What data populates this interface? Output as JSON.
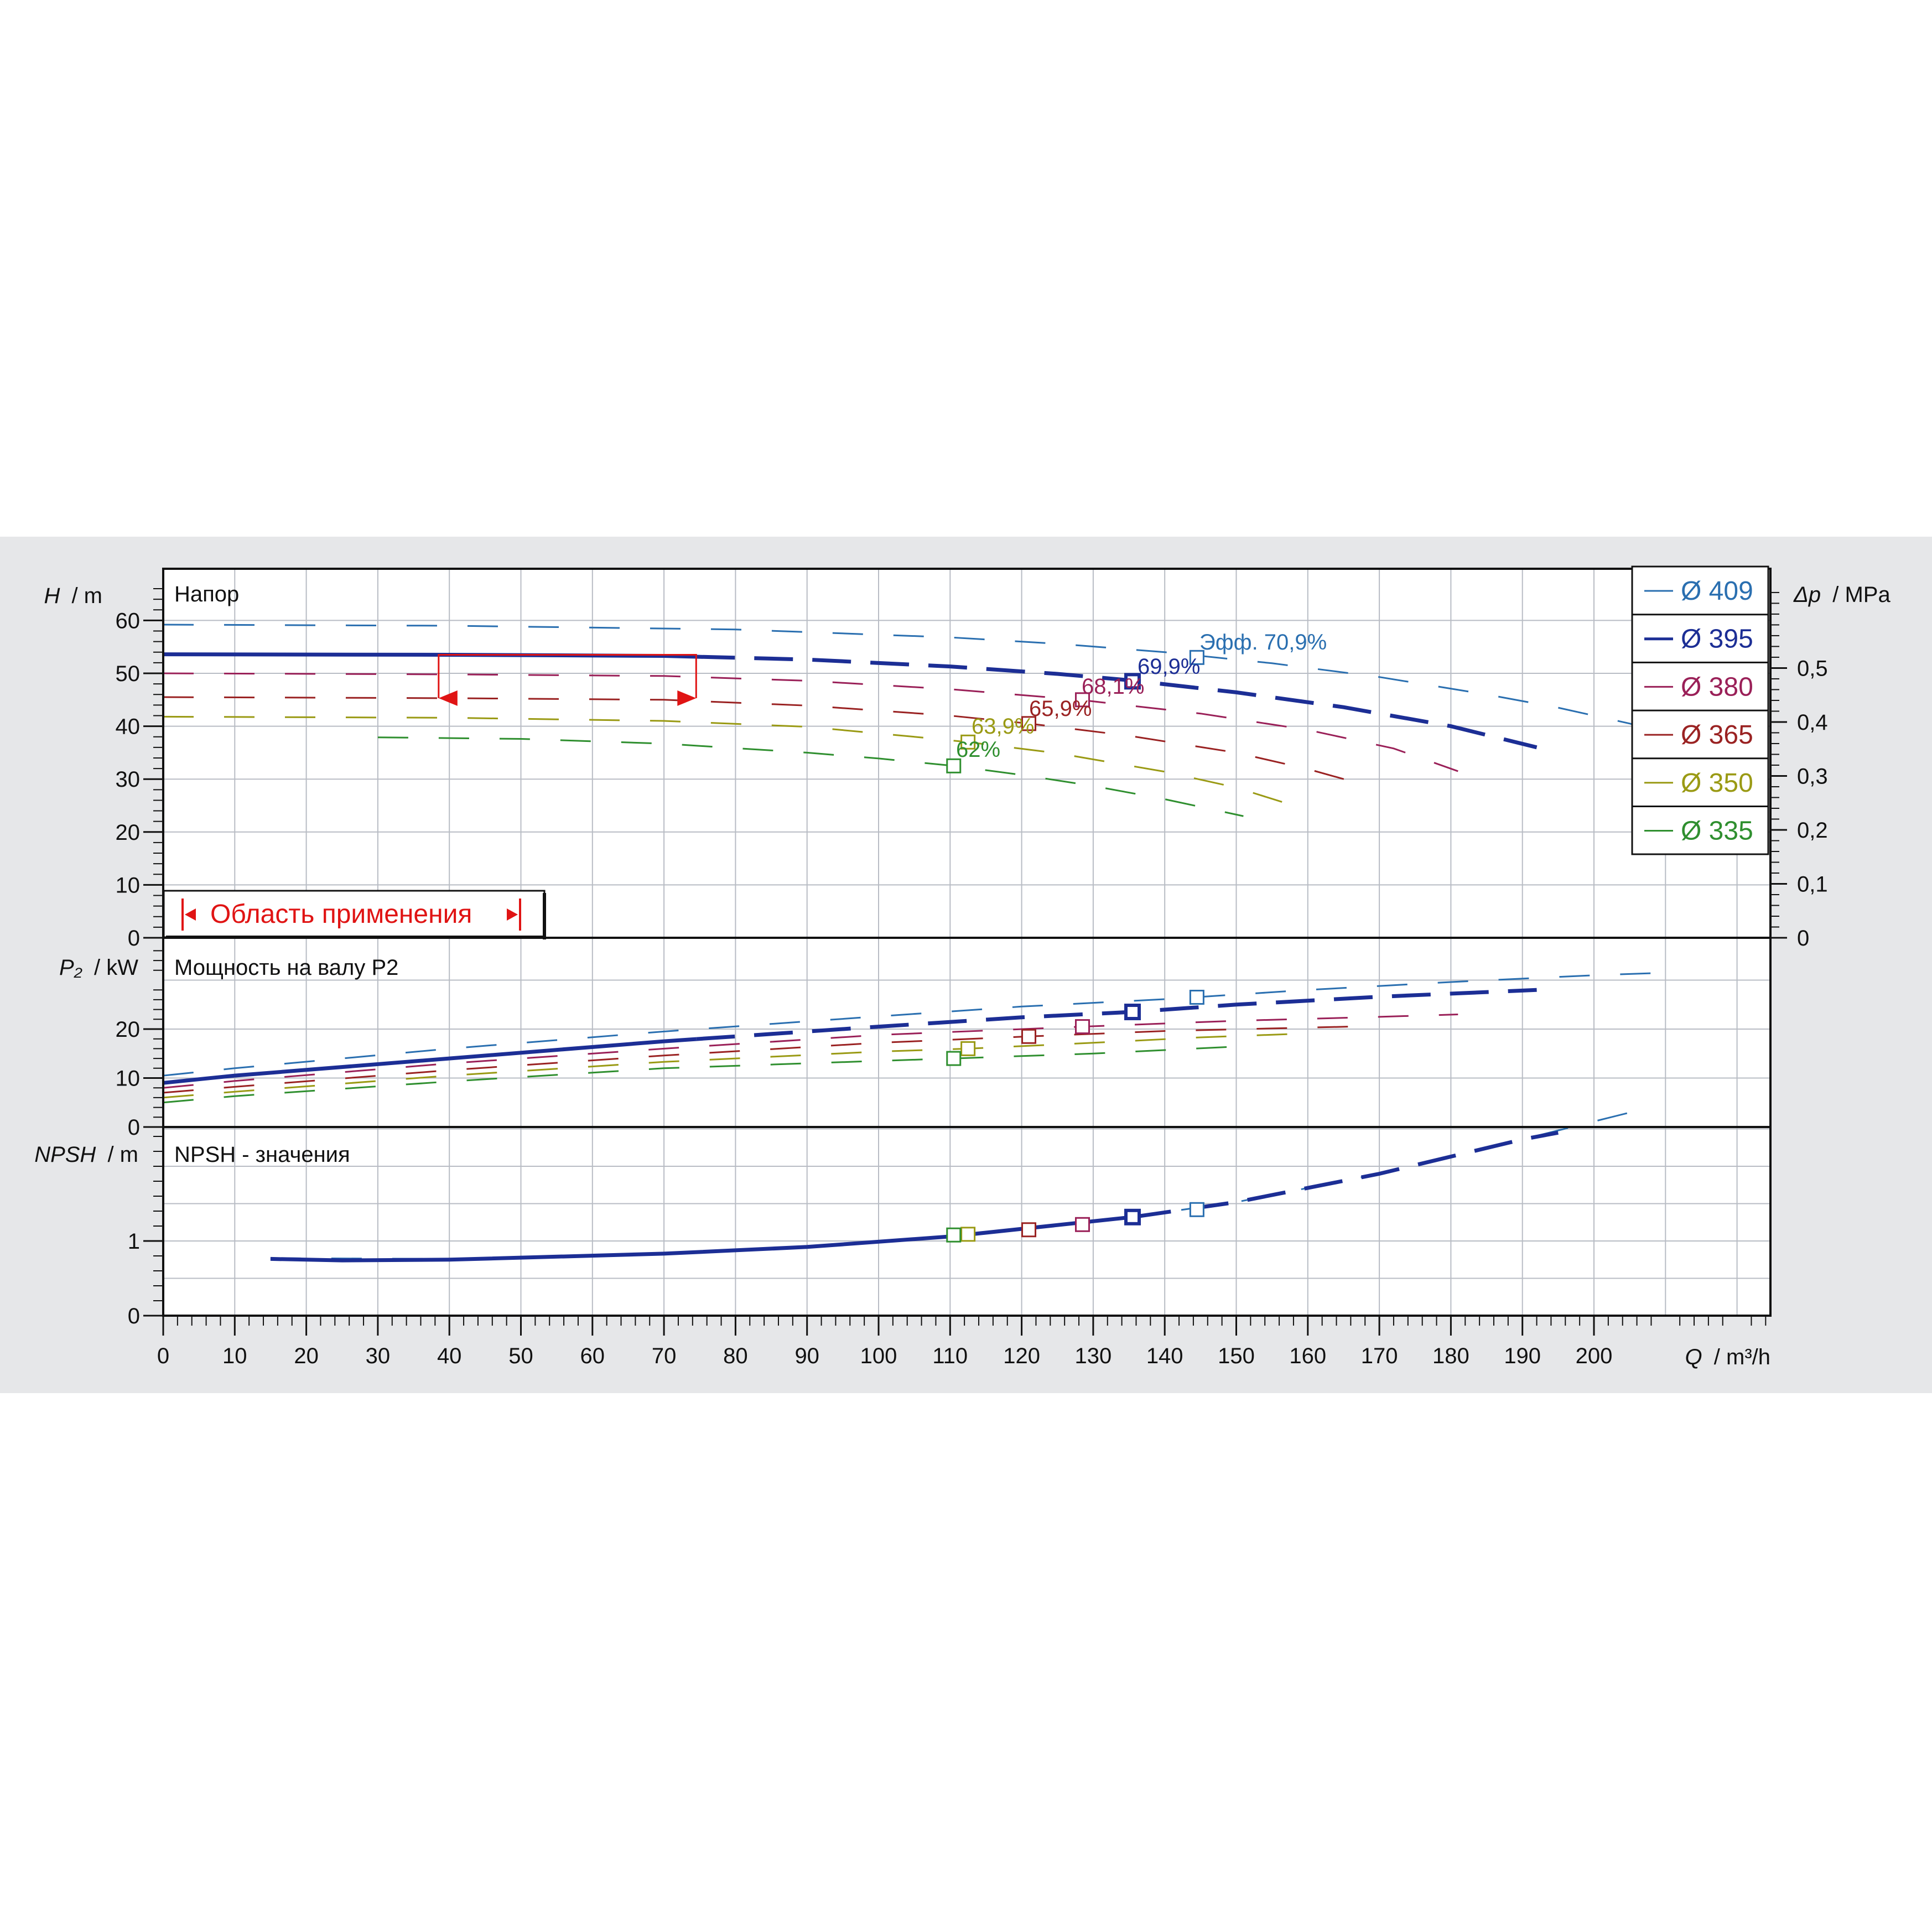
{
  "colors": {
    "d409": "#2a6fb0",
    "d395": "#1c2e95",
    "d380": "#9a2058",
    "d365": "#9a2222",
    "d350": "#9a9a14",
    "d335": "#2f8f2f",
    "range": "#e01414",
    "grid": "#b8bcc4",
    "axis": "#111111",
    "band": "#e6e7e9"
  },
  "axes": {
    "head_title": "Напор",
    "head_ylabel_sym": "H",
    "head_ylabel_unit": "/ m",
    "head_ticks": [
      "0",
      "10",
      "20",
      "30",
      "40",
      "50",
      "60"
    ],
    "dp_label_sym": "Δp",
    "dp_label_unit": "/ MPa",
    "dp_ticks": [
      "0",
      "0,1",
      "0,2",
      "0,3",
      "0,4",
      "0,5"
    ],
    "power_title": "Мощность на валу P2",
    "power_ylabel_sym": "P₂",
    "power_ylabel_unit": "/ kW",
    "power_ticks": [
      "0",
      "10",
      "20"
    ],
    "npsh_title": "NPSH - значения",
    "npsh_ylabel_sym": "NPSH",
    "npsh_ylabel_unit": "/ m",
    "npsh_ticks": [
      "0",
      "1"
    ],
    "x_ticks": [
      "0",
      "10",
      "20",
      "30",
      "40",
      "50",
      "60",
      "70",
      "80",
      "90",
      "100",
      "110",
      "120",
      "130",
      "140",
      "150",
      "160",
      "170",
      "180",
      "190",
      "200"
    ],
    "xlabel_sym": "Q",
    "xlabel_unit": "/ m³/h"
  },
  "legend": {
    "items": [
      {
        "label": "Ø 409",
        "color": "#2a6fb0"
      },
      {
        "label": "Ø 395",
        "color": "#1c2e95"
      },
      {
        "label": "Ø 380",
        "color": "#9a2058"
      },
      {
        "label": "Ø 365",
        "color": "#9a2222"
      },
      {
        "label": "Ø 350",
        "color": "#9a9a14"
      },
      {
        "label": "Ø 335",
        "color": "#2f8f2f"
      }
    ]
  },
  "annotations": {
    "range_label": "Область применения",
    "eff_409": "Эфф.  70,9%",
    "eff_395": "69,9%",
    "eff_380": "68,1%",
    "eff_365": "65,9%",
    "eff_350": "63,9%",
    "eff_335": "62%"
  },
  "chart_data": [
    {
      "type": "line",
      "title": "Напор",
      "xlabel": "Q / m³/h",
      "ylabel": "H / m",
      "y2label": "Δp / MPa",
      "xlim": [
        0,
        225
      ],
      "ylim": [
        0,
        70
      ],
      "y2lim": [
        0,
        0.7
      ],
      "grid": true,
      "legend_position": "right",
      "operating_range": [
        38.5,
        74.5
      ],
      "series": [
        {
          "name": "Ø 409",
          "bep": [
            144.5,
            53.0
          ],
          "x": [
            0,
            40,
            80,
            110,
            125,
            140,
            155,
            170,
            185,
            195,
            205,
            212
          ],
          "values": [
            59.2,
            59.0,
            58.3,
            56.8,
            55.6,
            54.0,
            51.9,
            49.3,
            46.0,
            43.5,
            40.5,
            38.0
          ]
        },
        {
          "name": "Ø 395",
          "bep": [
            135.5,
            48.5
          ],
          "x": [
            0,
            40,
            70,
            90,
            110,
            125,
            135,
            150,
            165,
            180,
            192
          ],
          "values": [
            53.6,
            53.5,
            53.3,
            52.6,
            51.3,
            49.9,
            48.7,
            46.4,
            43.6,
            40.0,
            36.0
          ]
        },
        {
          "name": "Ø 380",
          "bep": [
            128.5,
            45.0
          ],
          "x": [
            0,
            40,
            70,
            90,
            110,
            128,
            145,
            160,
            172,
            181
          ],
          "values": [
            50.0,
            49.8,
            49.5,
            48.6,
            47.0,
            45.0,
            42.4,
            39.3,
            35.8,
            31.5
          ]
        },
        {
          "name": "Ø 365",
          "bep": [
            121.0,
            40.5
          ],
          "x": [
            0,
            40,
            70,
            90,
            110,
            121,
            135,
            150,
            160,
            169
          ],
          "values": [
            45.5,
            45.3,
            45.0,
            43.9,
            42.0,
            40.5,
            38.2,
            35.0,
            31.9,
            28.5
          ]
        },
        {
          "name": "Ø 350",
          "bep": [
            112.5,
            37.0
          ],
          "x": [
            0,
            40,
            70,
            90,
            105,
            112.5,
            125,
            140,
            150,
            158
          ],
          "values": [
            41.8,
            41.6,
            41.0,
            39.9,
            38.0,
            37.0,
            34.9,
            31.4,
            28.4,
            25.0
          ]
        },
        {
          "name": "Ø 335",
          "bep": [
            110.5,
            32.5
          ],
          "x": [
            30,
            50,
            70,
            90,
            100,
            110.5,
            120,
            130,
            140,
            151
          ],
          "values": [
            37.9,
            37.6,
            36.7,
            35.0,
            33.9,
            32.5,
            30.8,
            28.7,
            26.2,
            23.0
          ]
        }
      ]
    },
    {
      "type": "line",
      "title": "Мощность на валу P2",
      "xlabel": "Q / m³/h",
      "ylabel": "P₂ / kW",
      "xlim": [
        0,
        225
      ],
      "ylim": [
        0,
        35
      ],
      "grid": true,
      "series": [
        {
          "name": "Ø 409",
          "bep": [
            144.5,
            26.5
          ],
          "x": [
            0,
            10,
            40,
            70,
            100,
            120,
            140,
            160,
            180,
            200,
            210
          ],
          "values": [
            10.5,
            12.0,
            16.0,
            19.5,
            22.6,
            24.6,
            26.1,
            28.0,
            29.6,
            31.0,
            31.5
          ]
        },
        {
          "name": "Ø 395",
          "bep": [
            135.5,
            23.5
          ],
          "x": [
            0,
            10,
            40,
            70,
            100,
            120,
            135.5,
            150,
            170,
            192
          ],
          "values": [
            9.0,
            10.5,
            14.0,
            17.5,
            20.5,
            22.4,
            23.5,
            25.0,
            26.6,
            28.0
          ]
        },
        {
          "name": "Ø 380",
          "bep": [
            128.5,
            20.5
          ],
          "x": [
            0,
            10,
            40,
            70,
            100,
            128.5,
            150,
            170,
            181
          ],
          "values": [
            8.0,
            9.4,
            13.0,
            16.0,
            18.8,
            20.5,
            21.7,
            22.5,
            23.0
          ]
        },
        {
          "name": "Ø 365",
          "bep": [
            121.0,
            18.5
          ],
          "x": [
            0,
            10,
            40,
            70,
            100,
            121,
            140,
            160,
            169
          ],
          "values": [
            7.0,
            8.2,
            11.6,
            14.6,
            17.2,
            18.5,
            19.6,
            20.3,
            20.6
          ]
        },
        {
          "name": "Ø 350",
          "bep": [
            112.5,
            16.0
          ],
          "x": [
            0,
            10,
            40,
            70,
            100,
            112.5,
            130,
            145,
            158
          ],
          "values": [
            6.0,
            7.2,
            10.5,
            13.3,
            15.4,
            16.0,
            17.2,
            18.3,
            19.0
          ]
        },
        {
          "name": "Ø 335",
          "bep": [
            110.5,
            14.0
          ],
          "x": [
            0,
            10,
            40,
            70,
            100,
            110.5,
            130,
            151
          ],
          "values": [
            5.0,
            6.3,
            9.3,
            12.0,
            13.5,
            14.0,
            15.0,
            16.5
          ]
        }
      ]
    },
    {
      "type": "line",
      "title": "NPSH - значения",
      "xlabel": "Q / m³/h",
      "ylabel": "NPSH / m",
      "xlim": [
        0,
        225
      ],
      "grid": true,
      "series": [
        {
          "name": "Ø 409",
          "x": [
            15,
            40,
            70,
            90,
            110,
            130,
            150,
            170,
            190,
            205
          ],
          "values": [
            0.77,
            0.76,
            0.84,
            0.93,
            1.06,
            1.25,
            1.52,
            1.9,
            2.36,
            2.72
          ]
        },
        {
          "name": "Ø 395",
          "x": [
            15,
            25,
            40,
            70,
            90,
            110,
            135.5,
            150,
            170,
            190,
            195
          ],
          "values": [
            0.76,
            0.74,
            0.75,
            0.83,
            0.92,
            1.06,
            1.32,
            1.52,
            1.9,
            2.36,
            2.45
          ]
        }
      ],
      "bep_markers": [
        {
          "name": "Ø 409",
          "x": 144.5,
          "y": 1.42
        },
        {
          "name": "Ø 395",
          "x": 135.5,
          "y": 1.32
        },
        {
          "name": "Ø 380",
          "x": 128.5,
          "y": 1.22
        },
        {
          "name": "Ø 365",
          "x": 121.0,
          "y": 1.15
        },
        {
          "name": "Ø 350",
          "x": 112.5,
          "y": 1.09
        },
        {
          "name": "Ø 335",
          "x": 110.5,
          "y": 1.08
        }
      ]
    }
  ]
}
